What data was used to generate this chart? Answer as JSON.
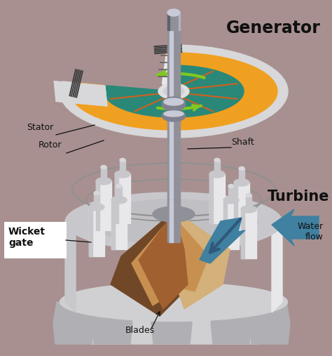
{
  "background_color": "#a89090",
  "title_generator": "Generator",
  "title_turbine": "Turbine",
  "label_stator": "Stator",
  "label_rotor": "Rotor",
  "label_shaft": "Shaft",
  "label_wicket_gate": "Wicket\ngate",
  "label_blades": "Blades",
  "label_water_flow": "Water\nflow",
  "figsize": [
    4.74,
    5.07
  ],
  "dpi": 100,
  "colors": {
    "bg": "#a89090",
    "orange": "#f0a020",
    "teal": "#2a8878",
    "orange_spoke": "#d06020",
    "green_arrow": "#80c820",
    "shaft_gray": "#909098",
    "shaft_light": "#c8cad8",
    "shaft_dark": "#606070",
    "white_part": "#e8e8ea",
    "white_dark": "#c8c8cc",
    "white_shadow": "#b0b0b4",
    "blade_gold": "#c89050",
    "blade_light": "#d4b07a",
    "blade_dark": "#704828",
    "blade_mid": "#a06030",
    "blue_water": "#4080a0",
    "blue_dark": "#305878",
    "black": "#101010",
    "stator_outer": "#d8d8da",
    "coupling": "#808090",
    "base_light": "#d0d0d2",
    "base_dark": "#b0b0b4"
  }
}
